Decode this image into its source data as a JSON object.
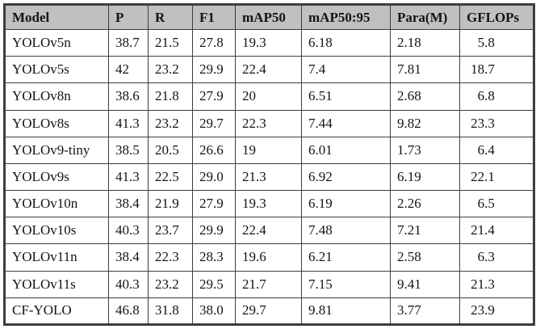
{
  "colors": {
    "header_bg": "#c0c0c0",
    "border": "#3d3d3d",
    "row_bg": "#ffffff"
  },
  "table": {
    "columns": [
      "Model",
      "P",
      "R",
      "F1",
      "mAP50",
      "mAP50:95",
      "Para(M)",
      "GFLOPs"
    ],
    "rows": [
      {
        "cells": [
          "YOLOv5n",
          "38.7",
          "21.5",
          "27.8",
          "19.3",
          "6.18",
          "2.18",
          "5.8"
        ]
      },
      {
        "cells": [
          "YOLOv5s",
          "42",
          "23.2",
          "29.9",
          "22.4",
          "7.4",
          "7.81",
          "18.7"
        ]
      },
      {
        "cells": [
          "YOLOv8n",
          "38.6",
          "21.8",
          "27.9",
          "20",
          "6.51",
          "2.68",
          "6.8"
        ]
      },
      {
        "cells": [
          "YOLOv8s",
          "41.3",
          "23.2",
          "29.7",
          "22.3",
          "7.44",
          "9.82",
          "23.3"
        ]
      },
      {
        "cells": [
          "YOLOv9-tiny",
          "38.5",
          "20.5",
          "26.6",
          "19",
          "6.01",
          "1.73",
          "6.4"
        ]
      },
      {
        "cells": [
          "YOLOv9s",
          "41.3",
          "22.5",
          "29.0",
          "21.3",
          "6.92",
          "6.19",
          "22.1"
        ]
      },
      {
        "cells": [
          "YOLOv10n",
          "38.4",
          "21.9",
          "27.9",
          "19.3",
          "6.19",
          "2.26",
          "6.5"
        ]
      },
      {
        "cells": [
          "YOLOv10s",
          "40.3",
          "23.7",
          "29.9",
          "22.4",
          "7.48",
          "7.21",
          "21.4"
        ]
      },
      {
        "cells": [
          "YOLOv11n",
          "38.4",
          "22.3",
          "28.3",
          "19.6",
          "6.21",
          "2.58",
          "6.3"
        ]
      },
      {
        "cells": [
          "YOLOv11s",
          "40.3",
          "23.2",
          "29.5",
          "21.7",
          "7.15",
          "9.41",
          "21.3"
        ]
      },
      {
        "cells": [
          "CF-YOLO",
          "46.8",
          "31.8",
          "38.0",
          "29.7",
          "9.81",
          "3.77",
          "23.9"
        ]
      }
    ]
  }
}
